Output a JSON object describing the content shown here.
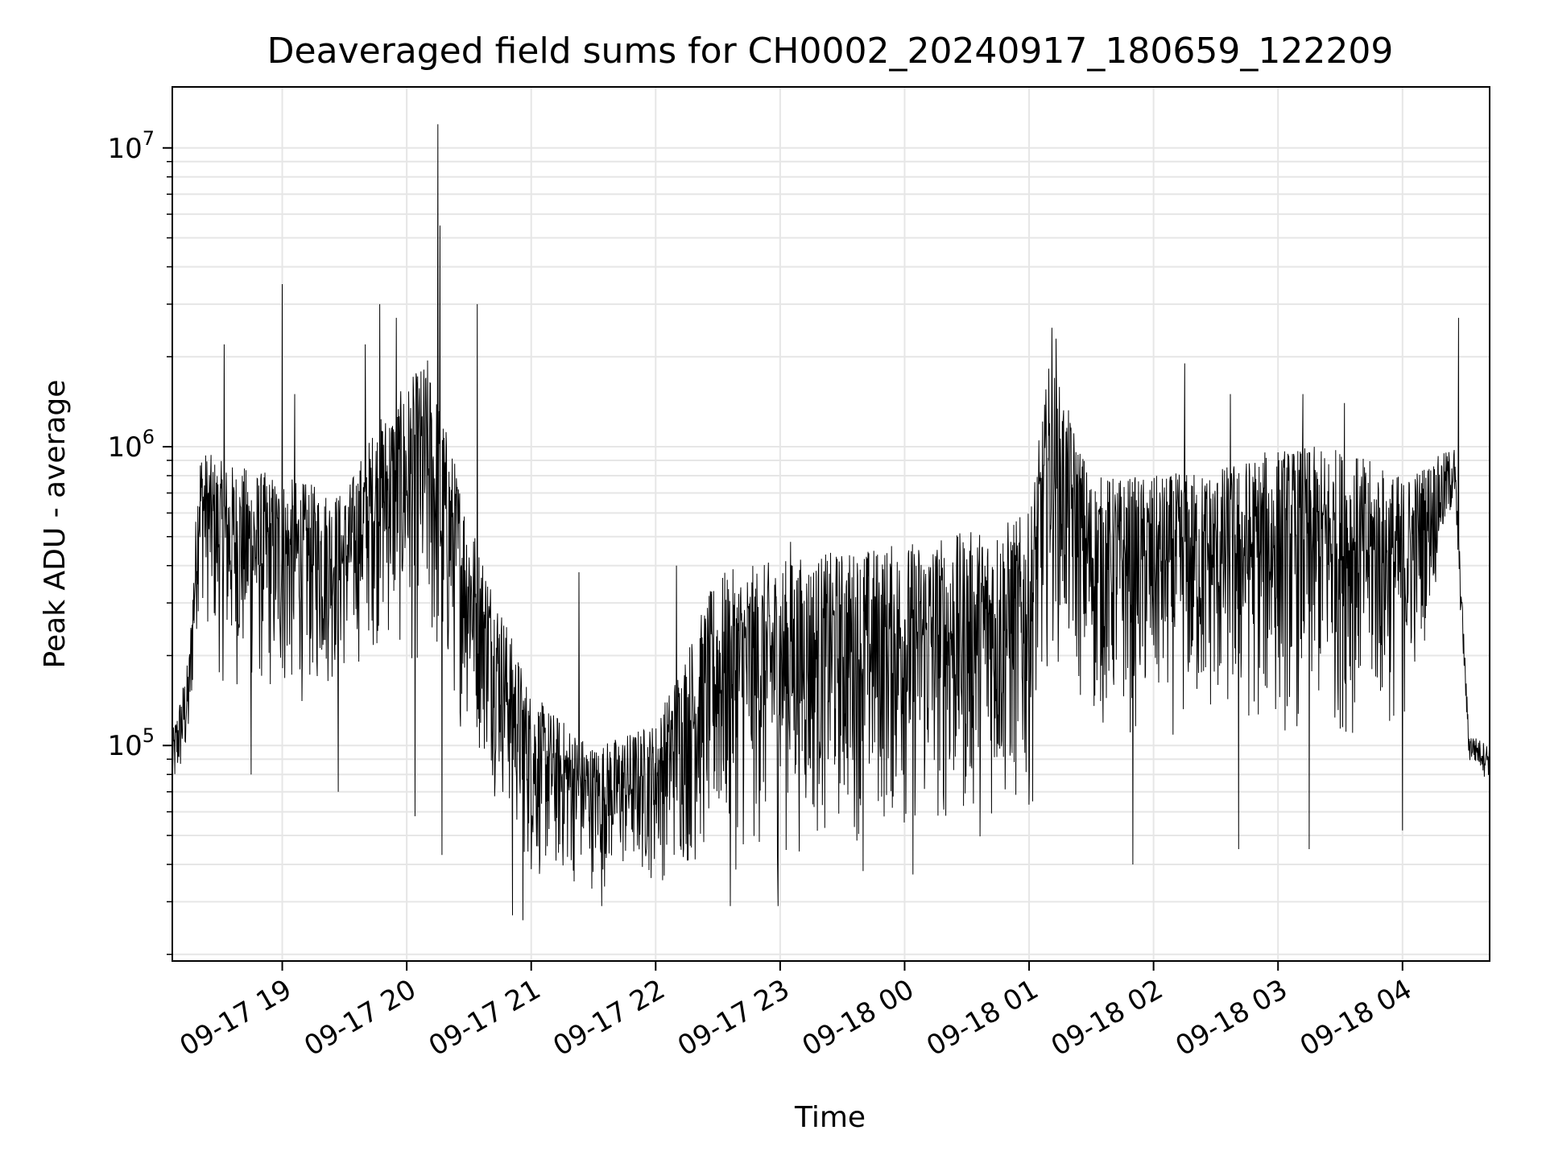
{
  "chart_data": {
    "type": "line",
    "title": "Deaveraged field sums for CH0002_20240917_180659_122209",
    "xlabel": "Time",
    "ylabel": "Peak ADU - average",
    "yscale": "log",
    "grid": true,
    "legend": "none",
    "line_color": "#000000",
    "grid_color": "#e6e6e6",
    "xlim": [
      "2024-09-17 18:07",
      "2024-09-18 04:42"
    ],
    "ylim": [
      19000,
      16000000
    ],
    "xticks": [
      {
        "t": "2024-09-17 19:00",
        "label": "09-17 19"
      },
      {
        "t": "2024-09-17 20:00",
        "label": "09-17 20"
      },
      {
        "t": "2024-09-17 21:00",
        "label": "09-17 21"
      },
      {
        "t": "2024-09-17 22:00",
        "label": "09-17 22"
      },
      {
        "t": "2024-09-17 23:00",
        "label": "09-17 23"
      },
      {
        "t": "2024-09-18 00:00",
        "label": "09-18 00"
      },
      {
        "t": "2024-09-18 01:00",
        "label": "09-18 01"
      },
      {
        "t": "2024-09-18 02:00",
        "label": "09-18 02"
      },
      {
        "t": "2024-09-18 03:00",
        "label": "09-18 03"
      },
      {
        "t": "2024-09-18 04:00",
        "label": "09-18 04"
      }
    ],
    "yticks": [
      {
        "v": 100000,
        "base": "10",
        "exp": "5"
      },
      {
        "v": 1000000,
        "base": "10",
        "exp": "6"
      },
      {
        "v": 10000000,
        "base": "10",
        "exp": "7"
      }
    ],
    "series": [
      {
        "envelope": [
          {
            "t": "2024-09-17 18:07",
            "low": 60000,
            "high": 110000
          },
          {
            "t": "2024-09-17 18:15",
            "low": 80000,
            "high": 200000
          },
          {
            "t": "2024-09-17 18:20",
            "low": 300000,
            "high": 1000000
          },
          {
            "t": "2024-09-17 18:30",
            "low": 150000,
            "high": 900000
          },
          {
            "t": "2024-09-17 19:00",
            "low": 120000,
            "high": 800000
          },
          {
            "t": "2024-09-17 19:30",
            "low": 150000,
            "high": 700000
          },
          {
            "t": "2024-09-17 19:45",
            "low": 200000,
            "high": 1200000
          },
          {
            "t": "2024-09-17 20:10",
            "low": 150000,
            "high": 2000000
          },
          {
            "t": "2024-09-17 20:30",
            "low": 100000,
            "high": 600000
          },
          {
            "t": "2024-09-17 20:45",
            "low": 60000,
            "high": 300000
          },
          {
            "t": "2024-09-17 21:00",
            "low": 32000,
            "high": 150000
          },
          {
            "t": "2024-09-17 21:30",
            "low": 32000,
            "high": 100000
          },
          {
            "t": "2024-09-17 22:00",
            "low": 33000,
            "high": 120000
          },
          {
            "t": "2024-09-17 22:30",
            "low": 35000,
            "high": 380000
          },
          {
            "t": "2024-09-17 23:00",
            "low": 38000,
            "high": 420000
          },
          {
            "t": "2024-09-17 23:30",
            "low": 45000,
            "high": 450000
          },
          {
            "t": "2024-09-18 00:00",
            "low": 45000,
            "high": 480000
          },
          {
            "t": "2024-09-18 00:30",
            "low": 45000,
            "high": 520000
          },
          {
            "t": "2024-09-18 01:00",
            "low": 50000,
            "high": 600000
          },
          {
            "t": "2024-09-18 01:10",
            "low": 200000,
            "high": 2000000
          },
          {
            "t": "2024-09-18 01:30",
            "low": 100000,
            "high": 800000
          },
          {
            "t": "2024-09-18 02:00",
            "low": 100000,
            "high": 800000
          },
          {
            "t": "2024-09-18 02:30",
            "low": 100000,
            "high": 850000
          },
          {
            "t": "2024-09-18 03:00",
            "low": 100000,
            "high": 1000000
          },
          {
            "t": "2024-09-18 03:30",
            "low": 100000,
            "high": 1000000
          },
          {
            "t": "2024-09-18 04:00",
            "low": 100000,
            "high": 800000
          },
          {
            "t": "2024-09-18 04:25",
            "low": 600000,
            "high": 1000000
          },
          {
            "t": "2024-09-18 04:32",
            "low": 85000,
            "high": 110000
          },
          {
            "t": "2024-09-18 04:42",
            "low": 75000,
            "high": 100000
          }
        ],
        "spikes": [
          {
            "t": "2024-09-17 18:32",
            "v": 2200000
          },
          {
            "t": "2024-09-17 19:00",
            "v": 3500000
          },
          {
            "t": "2024-09-17 19:06",
            "v": 1500000
          },
          {
            "t": "2024-09-17 19:40",
            "v": 2200000
          },
          {
            "t": "2024-09-17 19:47",
            "v": 3000000
          },
          {
            "t": "2024-09-17 19:55",
            "v": 2700000
          },
          {
            "t": "2024-09-17 20:15",
            "v": 12000000
          },
          {
            "t": "2024-09-17 20:16",
            "v": 5500000
          },
          {
            "t": "2024-09-17 20:34",
            "v": 3000000
          },
          {
            "t": "2024-09-17 21:23",
            "v": 380000
          },
          {
            "t": "2024-09-17 22:10",
            "v": 400000
          },
          {
            "t": "2024-09-17 23:05",
            "v": 480000
          },
          {
            "t": "2024-09-18 01:11",
            "v": 2500000
          },
          {
            "t": "2024-09-18 01:13",
            "v": 2300000
          },
          {
            "t": "2024-09-18 02:15",
            "v": 1900000
          },
          {
            "t": "2024-09-18 02:37",
            "v": 1500000
          },
          {
            "t": "2024-09-18 03:12",
            "v": 1500000
          },
          {
            "t": "2024-09-18 03:32",
            "v": 1400000
          },
          {
            "t": "2024-09-18 04:27",
            "v": 2700000
          }
        ],
        "dips": [
          {
            "t": "2024-09-17 18:45",
            "v": 80000
          },
          {
            "t": "2024-09-17 19:27",
            "v": 70000
          },
          {
            "t": "2024-09-17 20:04",
            "v": 58000
          },
          {
            "t": "2024-09-17 20:17",
            "v": 43000
          },
          {
            "t": "2024-09-17 20:51",
            "v": 27000
          },
          {
            "t": "2024-09-17 20:56",
            "v": 26000
          },
          {
            "t": "2024-09-17 21:34",
            "v": 29000
          },
          {
            "t": "2024-09-17 22:36",
            "v": 29000
          },
          {
            "t": "2024-09-17 22:59",
            "v": 29000
          },
          {
            "t": "2024-09-17 23:40",
            "v": 38000
          },
          {
            "t": "2024-09-18 00:04",
            "v": 37000
          },
          {
            "t": "2024-09-18 01:50",
            "v": 40000
          },
          {
            "t": "2024-09-18 02:41",
            "v": 45000
          },
          {
            "t": "2024-09-18 03:15",
            "v": 45000
          },
          {
            "t": "2024-09-18 04:00",
            "v": 52000
          }
        ]
      }
    ]
  }
}
